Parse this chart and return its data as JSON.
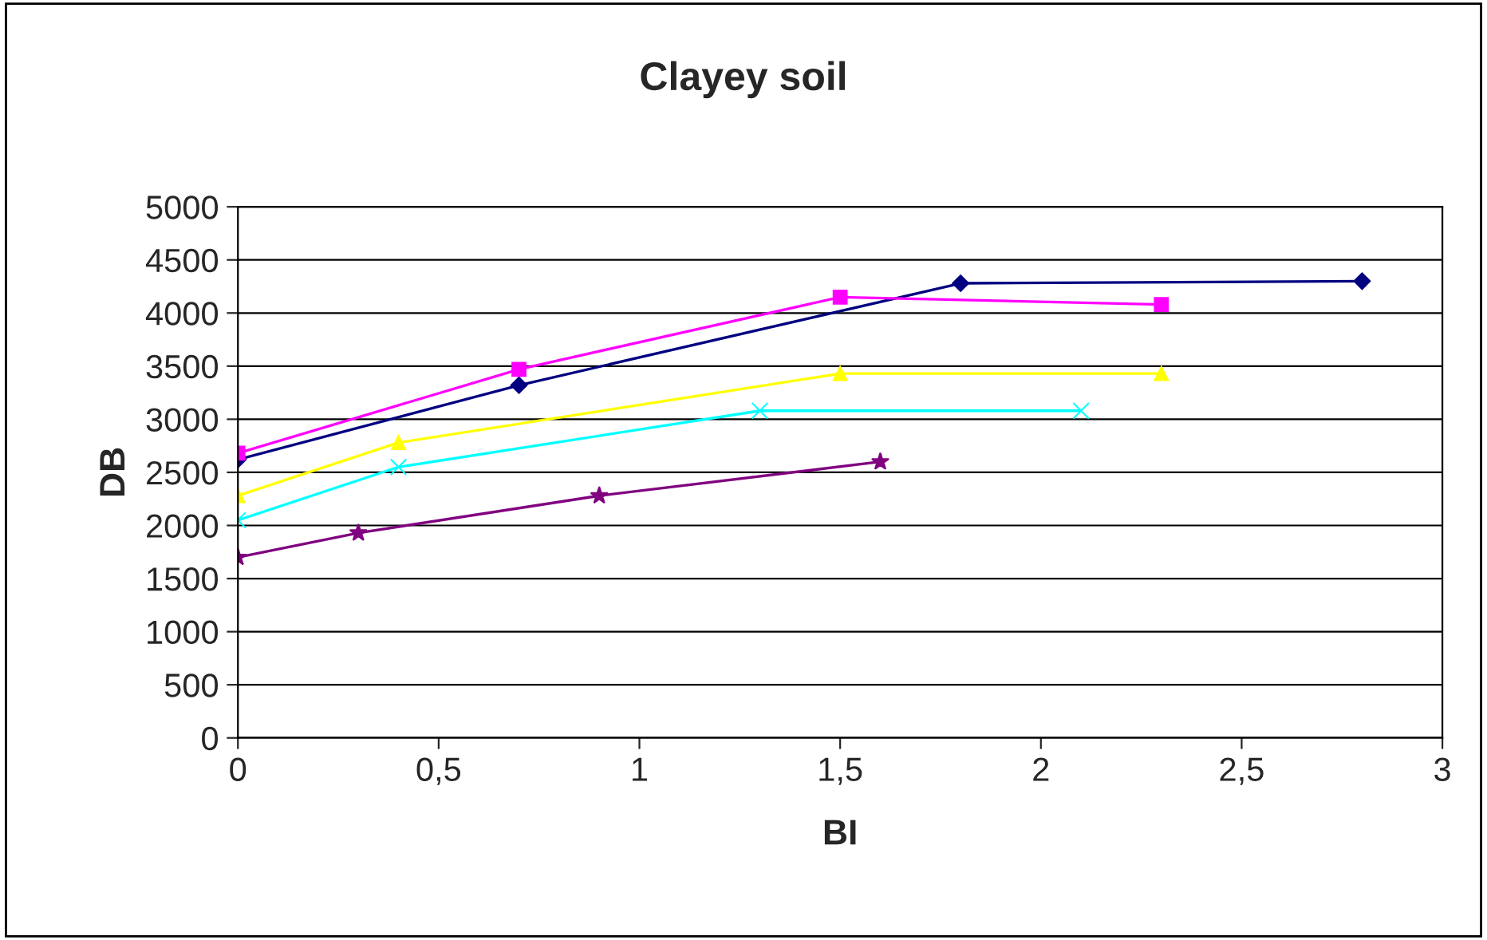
{
  "chart_data": {
    "type": "line",
    "title": "Clayey soil",
    "xlabel": "BI",
    "ylabel": "DB",
    "xlim": [
      0,
      3
    ],
    "xticks": [
      0,
      {
        "value": 0.5,
        "label": "0,5"
      },
      1,
      {
        "value": 1.5,
        "label": "1,5"
      },
      2,
      {
        "value": 2.5,
        "label": "2,5"
      },
      3
    ],
    "ylim": [
      0,
      5000
    ],
    "yticks": [
      0,
      500,
      1000,
      1500,
      2000,
      2500,
      3000,
      3500,
      4000,
      4500,
      5000
    ],
    "grid": "y",
    "legend": false,
    "series": [
      {
        "color": "#000080",
        "marker": "diamond",
        "x": [
          0,
          0.7,
          1.8,
          2.8
        ],
        "values": [
          2620,
          3320,
          4280,
          4300
        ]
      },
      {
        "color": "#ff00ff",
        "marker": "square",
        "x": [
          0,
          0.7,
          1.5,
          2.3
        ],
        "values": [
          2680,
          3470,
          4150,
          4080
        ]
      },
      {
        "color": "#ffff00",
        "marker": "triangle",
        "x": [
          0,
          0.4,
          1.5,
          2.3
        ],
        "values": [
          2280,
          2780,
          3430,
          3430
        ]
      },
      {
        "color": "#00ffff",
        "marker": "cross",
        "x": [
          0,
          0.4,
          1.3,
          2.1
        ],
        "values": [
          2050,
          2550,
          3080,
          3080
        ]
      },
      {
        "color": "#800080",
        "marker": "star",
        "x": [
          0,
          0.3,
          0.9,
          1.6
        ],
        "values": [
          1700,
          1930,
          2280,
          2600
        ]
      }
    ]
  }
}
